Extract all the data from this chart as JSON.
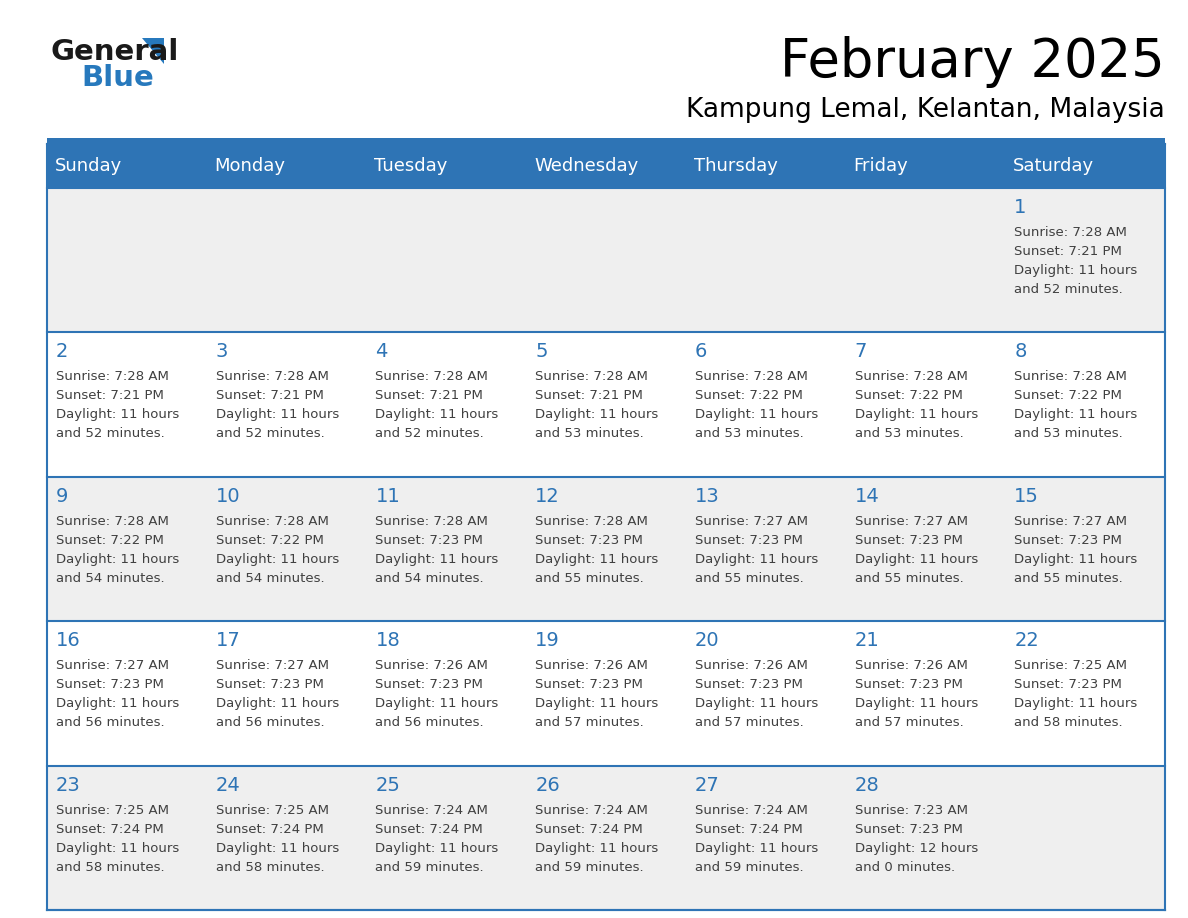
{
  "title": "February 2025",
  "subtitle": "Kampung Lemal, Kelantan, Malaysia",
  "days_of_week": [
    "Sunday",
    "Monday",
    "Tuesday",
    "Wednesday",
    "Thursday",
    "Friday",
    "Saturday"
  ],
  "header_bg_color": "#2E74B5",
  "header_text_color": "#FFFFFF",
  "cell_bg_even": "#EFEFEF",
  "cell_bg_odd": "#FFFFFF",
  "border_color": "#2E74B5",
  "day_num_color": "#2E74B5",
  "text_color": "#404040",
  "logo_general_color": "#1a1a1a",
  "logo_blue_color": "#2779BD",
  "calendar_data": [
    [
      null,
      null,
      null,
      null,
      null,
      null,
      {
        "day": 1,
        "sunrise": "7:28 AM",
        "sunset": "7:21 PM",
        "daylight": "11 hours and 52 minutes."
      }
    ],
    [
      {
        "day": 2,
        "sunrise": "7:28 AM",
        "sunset": "7:21 PM",
        "daylight": "11 hours and 52 minutes."
      },
      {
        "day": 3,
        "sunrise": "7:28 AM",
        "sunset": "7:21 PM",
        "daylight": "11 hours and 52 minutes."
      },
      {
        "day": 4,
        "sunrise": "7:28 AM",
        "sunset": "7:21 PM",
        "daylight": "11 hours and 52 minutes."
      },
      {
        "day": 5,
        "sunrise": "7:28 AM",
        "sunset": "7:21 PM",
        "daylight": "11 hours and 53 minutes."
      },
      {
        "day": 6,
        "sunrise": "7:28 AM",
        "sunset": "7:22 PM",
        "daylight": "11 hours and 53 minutes."
      },
      {
        "day": 7,
        "sunrise": "7:28 AM",
        "sunset": "7:22 PM",
        "daylight": "11 hours and 53 minutes."
      },
      {
        "day": 8,
        "sunrise": "7:28 AM",
        "sunset": "7:22 PM",
        "daylight": "11 hours and 53 minutes."
      }
    ],
    [
      {
        "day": 9,
        "sunrise": "7:28 AM",
        "sunset": "7:22 PM",
        "daylight": "11 hours and 54 minutes."
      },
      {
        "day": 10,
        "sunrise": "7:28 AM",
        "sunset": "7:22 PM",
        "daylight": "11 hours and 54 minutes."
      },
      {
        "day": 11,
        "sunrise": "7:28 AM",
        "sunset": "7:23 PM",
        "daylight": "11 hours and 54 minutes."
      },
      {
        "day": 12,
        "sunrise": "7:28 AM",
        "sunset": "7:23 PM",
        "daylight": "11 hours and 55 minutes."
      },
      {
        "day": 13,
        "sunrise": "7:27 AM",
        "sunset": "7:23 PM",
        "daylight": "11 hours and 55 minutes."
      },
      {
        "day": 14,
        "sunrise": "7:27 AM",
        "sunset": "7:23 PM",
        "daylight": "11 hours and 55 minutes."
      },
      {
        "day": 15,
        "sunrise": "7:27 AM",
        "sunset": "7:23 PM",
        "daylight": "11 hours and 55 minutes."
      }
    ],
    [
      {
        "day": 16,
        "sunrise": "7:27 AM",
        "sunset": "7:23 PM",
        "daylight": "11 hours and 56 minutes."
      },
      {
        "day": 17,
        "sunrise": "7:27 AM",
        "sunset": "7:23 PM",
        "daylight": "11 hours and 56 minutes."
      },
      {
        "day": 18,
        "sunrise": "7:26 AM",
        "sunset": "7:23 PM",
        "daylight": "11 hours and 56 minutes."
      },
      {
        "day": 19,
        "sunrise": "7:26 AM",
        "sunset": "7:23 PM",
        "daylight": "11 hours and 57 minutes."
      },
      {
        "day": 20,
        "sunrise": "7:26 AM",
        "sunset": "7:23 PM",
        "daylight": "11 hours and 57 minutes."
      },
      {
        "day": 21,
        "sunrise": "7:26 AM",
        "sunset": "7:23 PM",
        "daylight": "11 hours and 57 minutes."
      },
      {
        "day": 22,
        "sunrise": "7:25 AM",
        "sunset": "7:23 PM",
        "daylight": "11 hours and 58 minutes."
      }
    ],
    [
      {
        "day": 23,
        "sunrise": "7:25 AM",
        "sunset": "7:24 PM",
        "daylight": "11 hours and 58 minutes."
      },
      {
        "day": 24,
        "sunrise": "7:25 AM",
        "sunset": "7:24 PM",
        "daylight": "11 hours and 58 minutes."
      },
      {
        "day": 25,
        "sunrise": "7:24 AM",
        "sunset": "7:24 PM",
        "daylight": "11 hours and 59 minutes."
      },
      {
        "day": 26,
        "sunrise": "7:24 AM",
        "sunset": "7:24 PM",
        "daylight": "11 hours and 59 minutes."
      },
      {
        "day": 27,
        "sunrise": "7:24 AM",
        "sunset": "7:24 PM",
        "daylight": "11 hours and 59 minutes."
      },
      {
        "day": 28,
        "sunrise": "7:23 AM",
        "sunset": "7:23 PM",
        "daylight": "12 hours and 0 minutes."
      },
      null
    ]
  ]
}
